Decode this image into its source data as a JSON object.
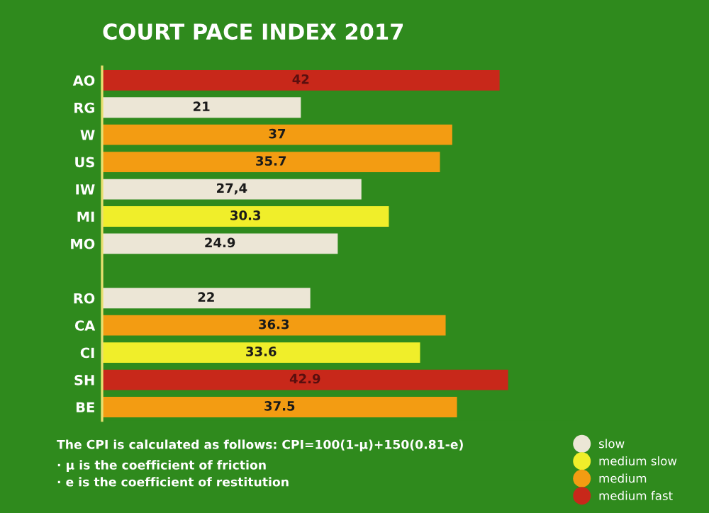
{
  "chart_data": {
    "type": "bar",
    "orientation": "horizontal",
    "title": "COURT PACE INDEX 2017",
    "categories": [
      "AO",
      "RG",
      "W",
      "US",
      "IW",
      "MI",
      "MO",
      null,
      "RO",
      "CA",
      "CI",
      "SH",
      "BE"
    ],
    "series": [
      {
        "name": "slow",
        "color": "#ece6d6",
        "values": [
          null,
          21,
          null,
          null,
          27.4,
          null,
          24.9,
          null,
          22,
          null,
          null,
          null,
          null
        ],
        "value_labels": [
          null,
          "21",
          null,
          null,
          "27,4",
          null,
          "24.9",
          null,
          "22",
          null,
          null,
          null,
          null
        ]
      },
      {
        "name": "medium slow",
        "color": "#f0ee2a",
        "values": [
          null,
          null,
          null,
          null,
          null,
          30.3,
          null,
          null,
          null,
          null,
          33.6,
          null,
          null
        ],
        "value_labels": [
          null,
          null,
          null,
          null,
          null,
          "30.3",
          null,
          null,
          null,
          null,
          "33.6",
          null,
          null
        ]
      },
      {
        "name": "medium",
        "color": "#f39c12",
        "values": [
          null,
          null,
          37,
          35.7,
          null,
          null,
          null,
          null,
          null,
          36.3,
          null,
          null,
          37.5
        ],
        "value_labels": [
          null,
          null,
          "37",
          "35.7",
          null,
          null,
          null,
          null,
          null,
          "36.3",
          null,
          null,
          "37.5"
        ]
      },
      {
        "name": "medium fast",
        "color": "#c8281a",
        "values": [
          42,
          null,
          null,
          null,
          null,
          null,
          null,
          null,
          null,
          null,
          null,
          42.9,
          null
        ],
        "value_labels": [
          "42",
          null,
          null,
          null,
          null,
          null,
          null,
          null,
          null,
          null,
          null,
          "42.9",
          null
        ]
      }
    ],
    "legend": "bottom right",
    "tick_labels": "y",
    "annotations": [
      "The CPI is calculated as follows: CPI=100(1-μ)+150(0.81-e)",
      "· μ is the coefficient of friction",
      "· e is the coefficient of restitution"
    ]
  }
}
